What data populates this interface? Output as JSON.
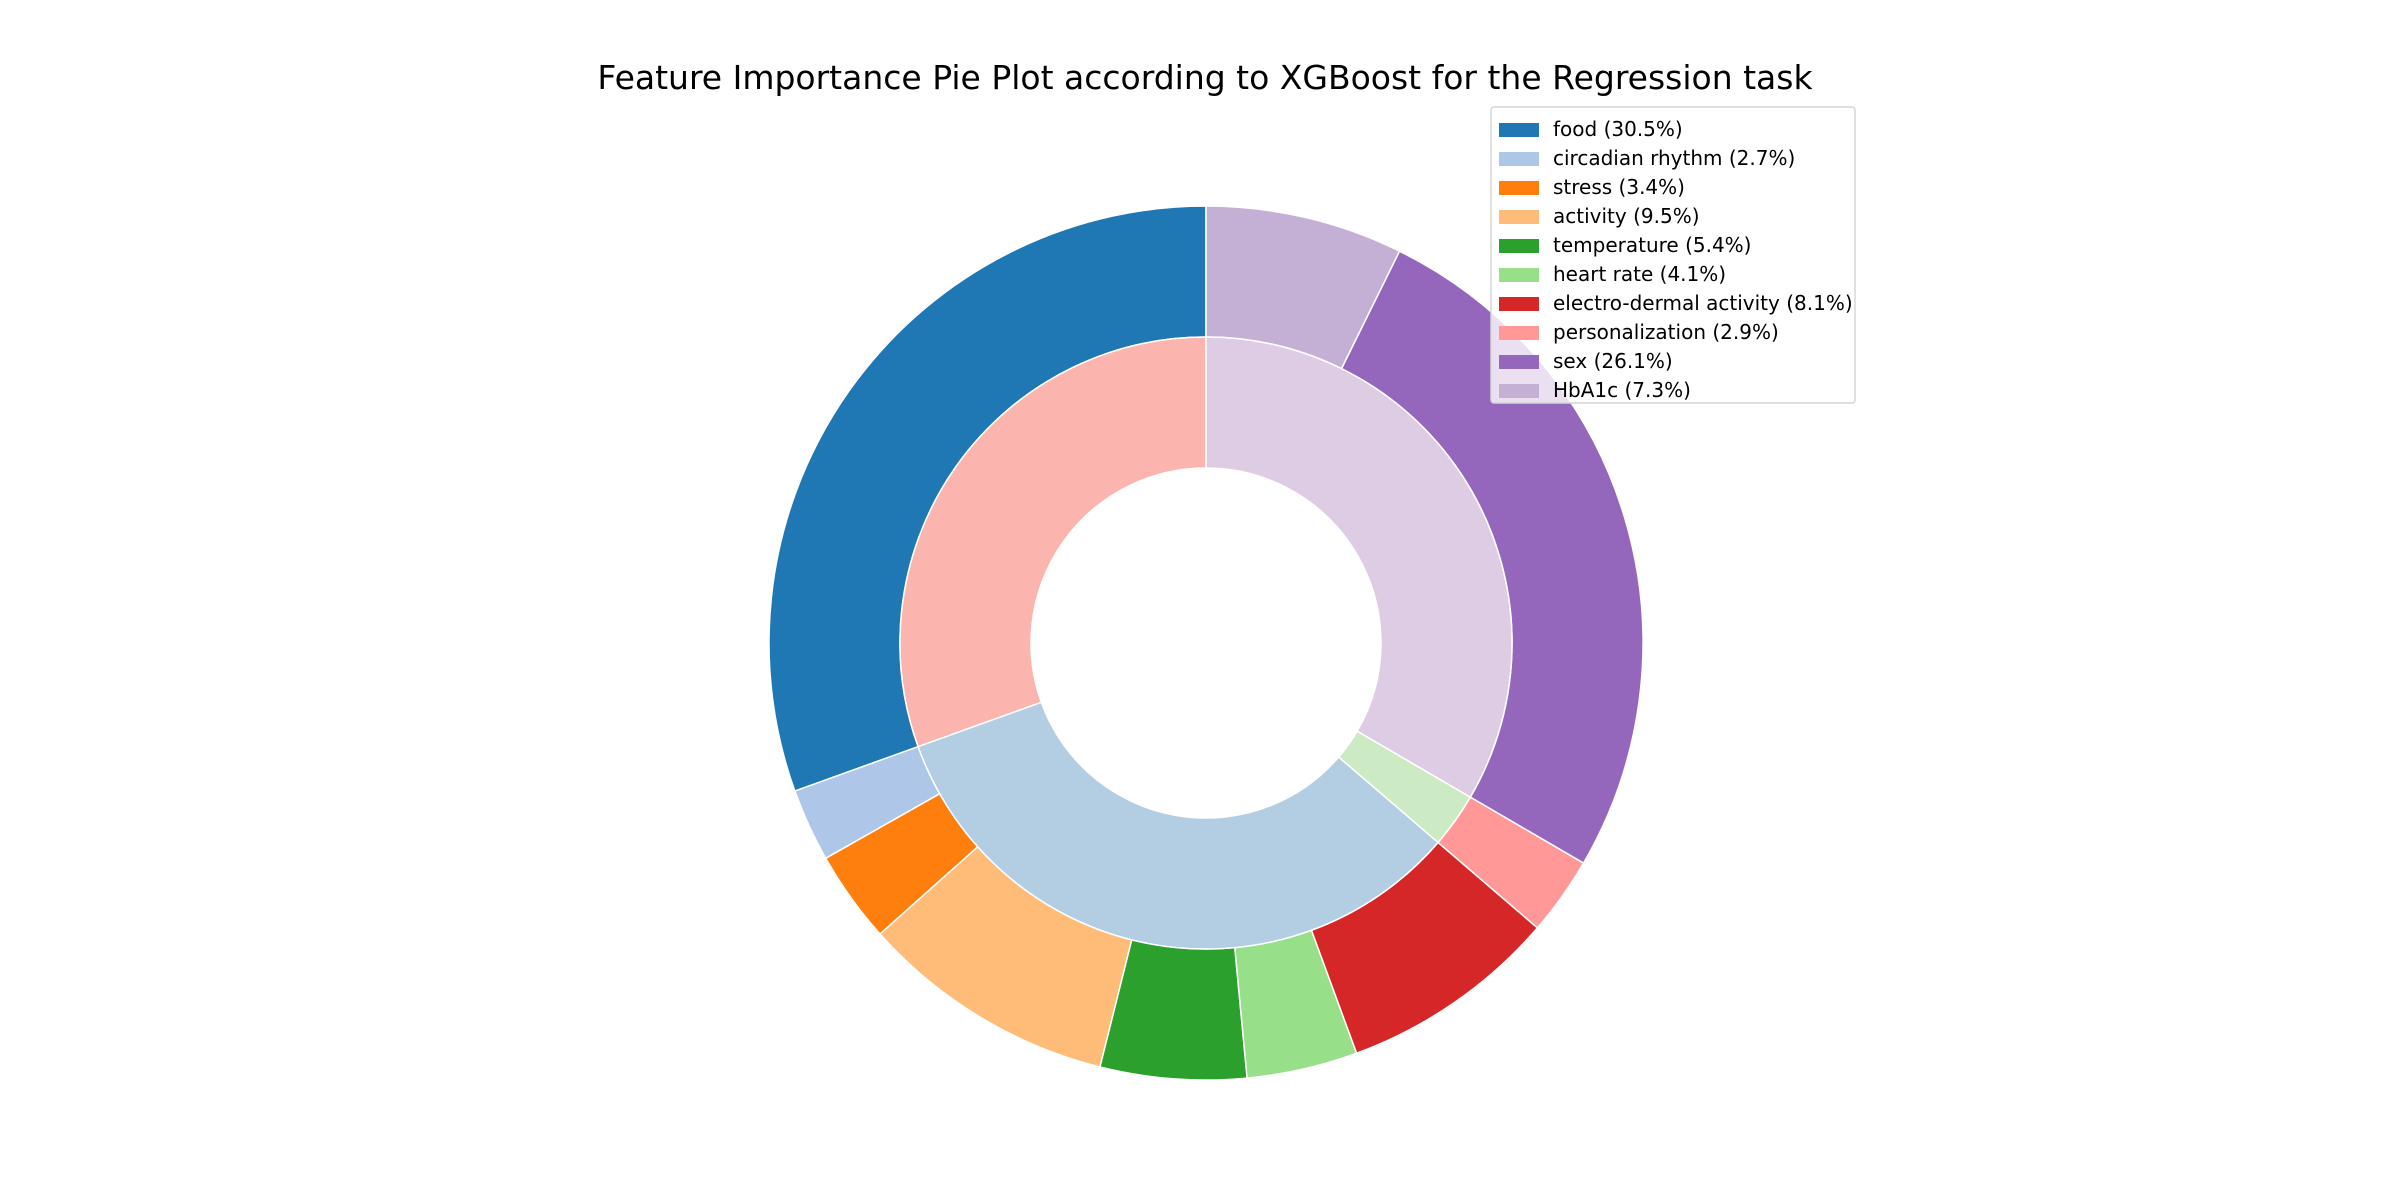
{
  "chart_data": {
    "type": "pie",
    "title": "Feature Importance Pie Plot according to XGBoost for the Regression task",
    "legend_position": "top-right",
    "outer_ring": [
      {
        "label": "food (30.5%)",
        "value": 30.5,
        "color": "#1f77b4"
      },
      {
        "label": "circadian rhythm (2.7%)",
        "value": 2.7,
        "color": "#aec7e8"
      },
      {
        "label": "stress (3.4%)",
        "value": 3.4,
        "color": "#ff7f0e"
      },
      {
        "label": "activity (9.5%)",
        "value": 9.5,
        "color": "#ffbb78"
      },
      {
        "label": "temperature (5.4%)",
        "value": 5.4,
        "color": "#2ca02c"
      },
      {
        "label": "heart rate (4.1%)",
        "value": 4.1,
        "color": "#98df8a"
      },
      {
        "label": "electro-dermal activity (8.1%)",
        "value": 8.1,
        "color": "#d62728"
      },
      {
        "label": "personalization (2.9%)",
        "value": 2.9,
        "color": "#ff9896"
      },
      {
        "label": "sex (26.1%)",
        "value": 26.1,
        "color": "#9467bd"
      },
      {
        "label": "HbA1c (7.3%)",
        "value": 7.3,
        "color": "#c5b0d5"
      }
    ],
    "inner_ring": [
      {
        "value": 30.5,
        "color": "#fbb4ae"
      },
      {
        "value": 33.2,
        "color": "#b3cde3"
      },
      {
        "value": 2.9,
        "color": "#ccebc5"
      },
      {
        "value": 33.4,
        "color": "#decbe4"
      }
    ]
  }
}
